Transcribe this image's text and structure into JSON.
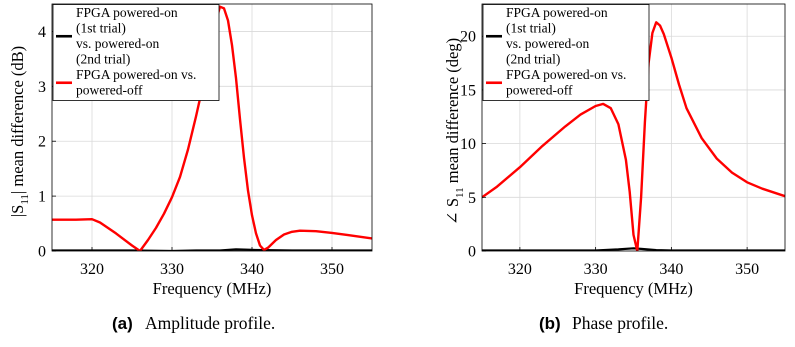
{
  "chart_data": [
    {
      "type": "line",
      "panel_tag": "(a)",
      "caption": "Amplitude profile.",
      "xlabel": "Frequency (MHz)",
      "ylabel": "|S11| mean difference (dB)",
      "ylabel_main_left": "|S",
      "ylabel_sub": "11",
      "ylabel_main_right": "| mean difference (dB)",
      "xlim": [
        315,
        355
      ],
      "ylim": [
        0,
        4.5
      ],
      "xticks": [
        320,
        330,
        340,
        350
      ],
      "yticks": [
        0,
        1,
        2,
        3,
        4
      ],
      "grid": true,
      "legend_position": "top-left",
      "series": [
        {
          "name": "FPGA powered-on (1st trial) vs. powered-on (2nd trial)",
          "legend_lines": [
            "FPGA powered-on",
            "(1st trial)",
            "vs. powered-on",
            "(2nd trial)"
          ],
          "color": "#000000",
          "x": [
            315,
            320,
            325,
            330,
            333,
            336,
            338,
            340,
            345,
            350,
            355
          ],
          "y": [
            0.01,
            0.01,
            0.01,
            0.0,
            0.01,
            0.01,
            0.03,
            0.02,
            0.01,
            0.01,
            0.01
          ]
        },
        {
          "name": "FPGA powered-on vs. powered-off",
          "legend_lines": [
            "FPGA powered-on vs.",
            "powered-off"
          ],
          "color": "#ff0000",
          "x": [
            315,
            318,
            320,
            321,
            323,
            325,
            326,
            327,
            328,
            329,
            330,
            331,
            332,
            333,
            334,
            335,
            335.5,
            336,
            336.5,
            337,
            337.5,
            338,
            338.5,
            339,
            339.5,
            340,
            340.5,
            341,
            341.5,
            342,
            343,
            344,
            345,
            346,
            348,
            350,
            352,
            355
          ],
          "y": [
            0.57,
            0.57,
            0.58,
            0.52,
            0.32,
            0.1,
            0.0,
            0.2,
            0.42,
            0.68,
            0.98,
            1.35,
            1.85,
            2.45,
            3.1,
            3.85,
            4.2,
            4.45,
            4.42,
            4.2,
            3.75,
            3.15,
            2.4,
            1.7,
            1.1,
            0.65,
            0.32,
            0.1,
            0.02,
            0.06,
            0.2,
            0.3,
            0.35,
            0.37,
            0.36,
            0.33,
            0.29,
            0.23
          ]
        }
      ]
    },
    {
      "type": "line",
      "panel_tag": "(b)",
      "caption": "Phase profile.",
      "xlabel": "Frequency (MHz)",
      "ylabel": "∠ S11 mean difference (deg)",
      "ylabel_main_left": "∠ S",
      "ylabel_sub": "11",
      "ylabel_main_right": " mean difference (deg)",
      "xlim": [
        315,
        355
      ],
      "ylim": [
        0,
        23
      ],
      "xticks": [
        320,
        330,
        340,
        350
      ],
      "yticks": [
        0,
        5,
        10,
        15,
        20
      ],
      "grid": true,
      "legend_position": "top-left",
      "series": [
        {
          "name": "FPGA powered-on (1st trial) vs. powered-on (2nd trial)",
          "legend_lines": [
            "FPGA powered-on",
            "(1st trial)",
            "vs. powered-on",
            "(2nd trial)"
          ],
          "color": "#000000",
          "x": [
            315,
            320,
            325,
            330,
            333,
            335,
            336,
            338,
            340,
            345,
            350,
            355
          ],
          "y": [
            0.05,
            0.05,
            0.05,
            0.05,
            0.15,
            0.25,
            0.2,
            0.08,
            0.05,
            0.05,
            0.05,
            0.05
          ]
        },
        {
          "name": "FPGA powered-on vs. powered-off",
          "legend_lines": [
            "FPGA powered-on vs.",
            "powered-off"
          ],
          "color": "#ff0000",
          "x": [
            315,
            317,
            320,
            323,
            326,
            328,
            330,
            331,
            332,
            333,
            334,
            334.5,
            335,
            335.5,
            336,
            336.5,
            337,
            337.5,
            338,
            338.5,
            339,
            340,
            341,
            342,
            344,
            346,
            348,
            350,
            352,
            355
          ],
          "y": [
            5.0,
            6.0,
            7.8,
            9.8,
            11.6,
            12.7,
            13.5,
            13.7,
            13.3,
            11.8,
            8.5,
            5.5,
            1.5,
            0.0,
            5.0,
            12.0,
            17.5,
            20.3,
            21.3,
            21.0,
            20.2,
            18.0,
            15.5,
            13.3,
            10.5,
            8.6,
            7.3,
            6.4,
            5.8,
            5.1
          ]
        }
      ]
    }
  ]
}
